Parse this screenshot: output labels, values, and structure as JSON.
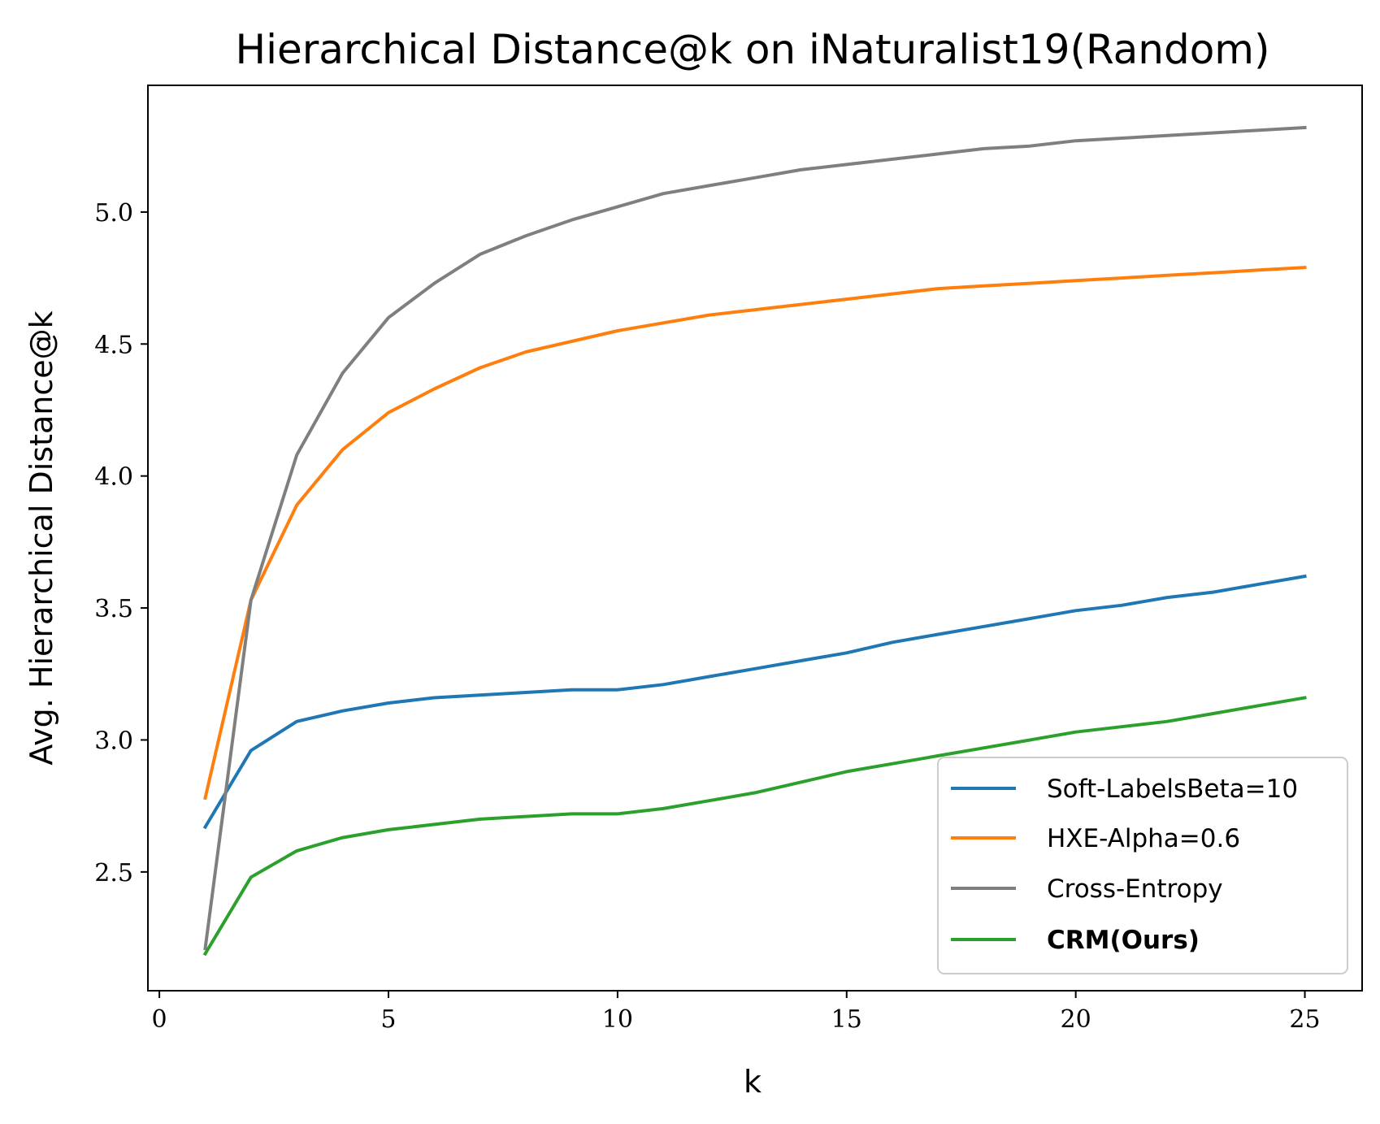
{
  "chart_data": {
    "type": "line",
    "title": "Hierarchical Distance@k on iNaturalist19(Random)",
    "xlabel": "k",
    "ylabel": "Avg. Hierarchical Distance@k",
    "xlim": [
      -0.25,
      26.25
    ],
    "ylim": [
      2.05,
      5.48
    ],
    "xticks": [
      0,
      5,
      10,
      15,
      20,
      25
    ],
    "xtick_labels": [
      "0",
      "5",
      "10",
      "15",
      "20",
      "25"
    ],
    "yticks": [
      2.5,
      3.0,
      3.5,
      4.0,
      4.5,
      5.0
    ],
    "ytick_labels": [
      "2.5",
      "3.0",
      "3.5",
      "4.0",
      "4.5",
      "5.0"
    ],
    "grid": false,
    "legend_position": "lower-right",
    "x": [
      1,
      2,
      3,
      4,
      5,
      6,
      7,
      8,
      9,
      10,
      11,
      12,
      13,
      14,
      15,
      16,
      17,
      18,
      19,
      20,
      21,
      22,
      23,
      24,
      25
    ],
    "series": [
      {
        "name": "Soft-LabelsBeta=10",
        "color": "#1f77b4",
        "bold": false,
        "values": [
          2.67,
          2.96,
          3.07,
          3.11,
          3.14,
          3.16,
          3.17,
          3.18,
          3.19,
          3.19,
          3.21,
          3.24,
          3.27,
          3.3,
          3.33,
          3.37,
          3.4,
          3.43,
          3.46,
          3.49,
          3.51,
          3.54,
          3.56,
          3.59,
          3.62
        ]
      },
      {
        "name": "HXE-Alpha=0.6",
        "color": "#ff7f0e",
        "bold": false,
        "values": [
          2.78,
          3.53,
          3.89,
          4.1,
          4.24,
          4.33,
          4.41,
          4.47,
          4.51,
          4.55,
          4.58,
          4.61,
          4.63,
          4.65,
          4.67,
          4.69,
          4.71,
          4.72,
          4.73,
          4.74,
          4.75,
          4.76,
          4.77,
          4.78,
          4.79
        ]
      },
      {
        "name": "Cross-Entropy",
        "color": "#7f7f7f",
        "bold": false,
        "values": [
          2.21,
          3.53,
          4.08,
          4.39,
          4.6,
          4.73,
          4.84,
          4.91,
          4.97,
          5.02,
          5.07,
          5.1,
          5.13,
          5.16,
          5.18,
          5.2,
          5.22,
          5.24,
          5.25,
          5.27,
          5.28,
          5.29,
          5.3,
          5.31,
          5.32
        ]
      },
      {
        "name": "CRM(Ours)",
        "color": "#2ca02c",
        "bold": true,
        "values": [
          2.19,
          2.48,
          2.58,
          2.63,
          2.66,
          2.68,
          2.7,
          2.71,
          2.72,
          2.72,
          2.74,
          2.77,
          2.8,
          2.84,
          2.88,
          2.91,
          2.94,
          2.97,
          3.0,
          3.03,
          3.05,
          3.07,
          3.1,
          3.13,
          3.16
        ]
      }
    ]
  }
}
